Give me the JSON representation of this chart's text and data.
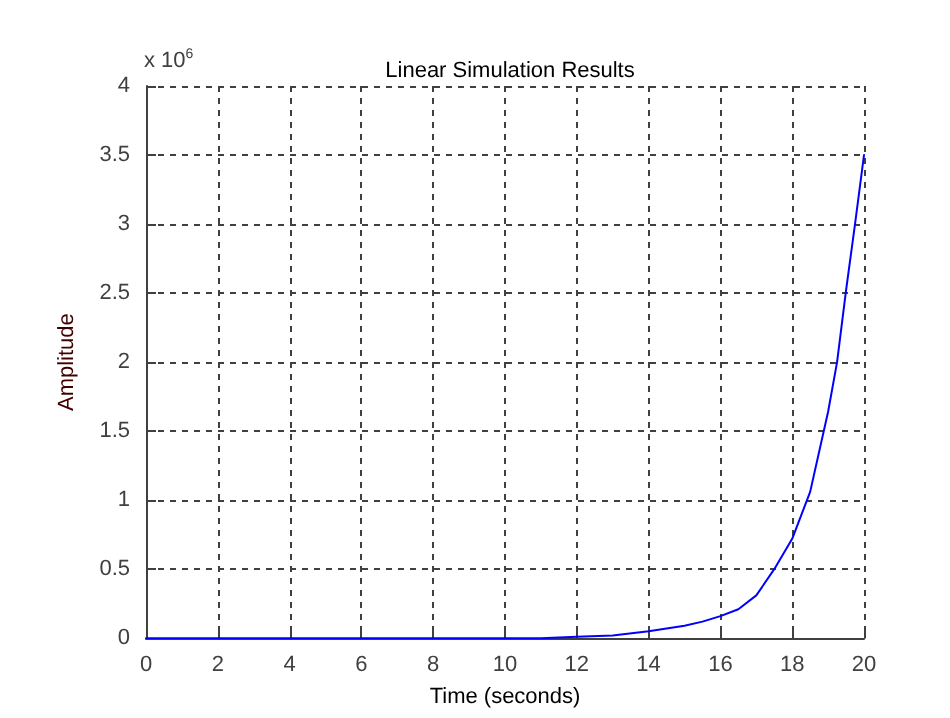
{
  "chart_data": {
    "type": "line",
    "title": "Linear Simulation Results",
    "xlabel": "Time (seconds)",
    "ylabel": "Amplitude",
    "annotations": [
      "x 10$^{6}$"
    ],
    "x": [
      0,
      2,
      4,
      6,
      8,
      10,
      11,
      12,
      13,
      14,
      14.5,
      15,
      15.5,
      16,
      16.5,
      17,
      17.5,
      18,
      18.5,
      19,
      19.25,
      19.5,
      19.75,
      20
    ],
    "series": [
      {
        "color": "#0000ff",
        "values": [
          0,
          0,
          0,
          0,
          0,
          0,
          0,
          0.01,
          0.02,
          0.05,
          0.07,
          0.09,
          0.12,
          0.16,
          0.21,
          0.31,
          0.5,
          0.72,
          1.06,
          1.64,
          2.0,
          2.52,
          3.0,
          3.5
        ]
      }
    ],
    "xlim": [
      0,
      20
    ],
    "xticks": [
      0,
      2,
      4,
      6,
      8,
      10,
      12,
      14,
      16,
      18,
      20
    ],
    "ylim": [
      0,
      4
    ],
    "yticks": [
      0,
      0.5,
      1,
      1.5,
      2,
      2.5,
      3,
      3.5,
      4
    ],
    "grid": true,
    "line_style": "solid",
    "marker": "none"
  }
}
